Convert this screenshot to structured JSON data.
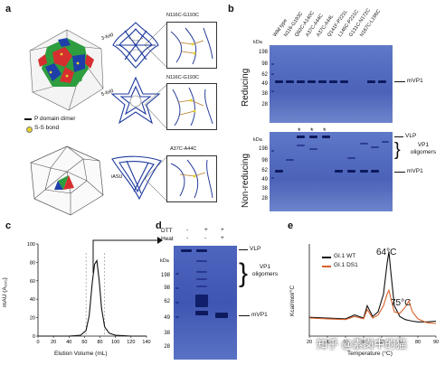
{
  "panels": {
    "a": {
      "label": "a",
      "legend": [
        "P domain dimer",
        "S-S bond"
      ],
      "axis_labels": [
        "3-fold",
        "5-fold"
      ],
      "iasu_label": "iASU",
      "zoom_labels": [
        "N116C-G193C",
        "N116C-G193C",
        "A37C-A44C"
      ]
    },
    "b": {
      "label": "b",
      "kda_unit": "kDa",
      "markers": [
        "198",
        "98",
        "62",
        "49",
        "38",
        "28"
      ],
      "lanes": [
        "Wild type",
        "N116-G193C",
        "Q82C-A140C",
        "A37C-A44C",
        "A37C-A44L",
        "Q141F-P221L",
        "L146C-P221C",
        "G131C-N172C",
        "N167C-L196C"
      ],
      "reducing_label": "Reducing",
      "nonreducing_label": "Non-reducing",
      "reducing_annotation": "mVP1",
      "nonreducing_annotations": [
        "VLP",
        "VP1 oligomers",
        "mVP1"
      ],
      "asterisk": "*"
    },
    "c": {
      "label": "c",
      "ylabel": "mAU (A₂₈₀)",
      "xlabel": "Elution Volume (mL)",
      "xticks": [
        "0",
        "20",
        "40",
        "60",
        "80",
        "100",
        "120",
        "140"
      ],
      "yticks": [
        "0",
        "20",
        "40",
        "60",
        "80",
        "100"
      ]
    },
    "d": {
      "label": "d",
      "row_labels": [
        "DTT",
        "Heat"
      ],
      "lane_signs": [
        [
          "-",
          "+",
          "+"
        ],
        [
          "-",
          "-",
          "+"
        ]
      ],
      "kda_unit": "kDa",
      "markers": [
        "198",
        "98",
        "62",
        "49",
        "38",
        "28"
      ],
      "annotations": [
        "VLP",
        "VP1 oligomers",
        "mVP1"
      ]
    },
    "e": {
      "label": "e",
      "ylabel": "Kcal/mol/°C",
      "xlabel": "Temperature (°C)",
      "xticks": [
        "20",
        "30",
        "40",
        "50",
        "60",
        "70",
        "80",
        "90"
      ],
      "legend": [
        {
          "name": "GI.1 WT",
          "color": "#111111"
        },
        {
          "name": "GI.1 DS1",
          "color": "#d9622b"
        }
      ],
      "peak_labels": [
        "64°C",
        "75°C"
      ]
    }
  },
  "chart_data": {
    "type": "line",
    "xlabel": "Elution Volume (mL)",
    "ylabel": "mAU (A₂₈₀)",
    "xlim": [
      0,
      140
    ],
    "ylim": [
      0,
      100
    ],
    "x": [
      0,
      20,
      40,
      55,
      62,
      66,
      70,
      73,
      76,
      79,
      82,
      86,
      92,
      100,
      120,
      140
    ],
    "series": [
      {
        "values": [
          0,
          0,
          0,
          1,
          6,
          22,
          58,
          78,
          82,
          60,
          30,
          10,
          3,
          1,
          0,
          0
        ]
      }
    ]
  },
  "dsc_data": {
    "type": "line",
    "xlabel": "Temperature (°C)",
    "ylabel": "Kcal/mol/°C",
    "xlim": [
      20,
      90
    ],
    "x": [
      20,
      30,
      40,
      45,
      50,
      52,
      55,
      58,
      61,
      63,
      64,
      65,
      67,
      70,
      73,
      75,
      77,
      80,
      85,
      90
    ],
    "series": [
      {
        "name": "GI.1 WT",
        "color": "#111111",
        "values": [
          0.5,
          0.4,
          0.3,
          0.8,
          0.4,
          2.0,
          0.6,
          1.2,
          3.5,
          7.5,
          9.0,
          6.5,
          2.0,
          0.6,
          0.2,
          0.1,
          0.0,
          -0.1,
          -0.1,
          0.0
        ]
      },
      {
        "name": "GI.1 DS1",
        "color": "#d9622b",
        "values": [
          0.4,
          0.3,
          0.2,
          0.6,
          0.3,
          1.5,
          0.4,
          0.8,
          2.0,
          3.5,
          4.0,
          3.0,
          1.2,
          1.0,
          1.8,
          2.6,
          1.2,
          0.3,
          -0.2,
          -0.3
        ]
      }
    ]
  },
  "watermark": "知乎 @素岗中的猫"
}
